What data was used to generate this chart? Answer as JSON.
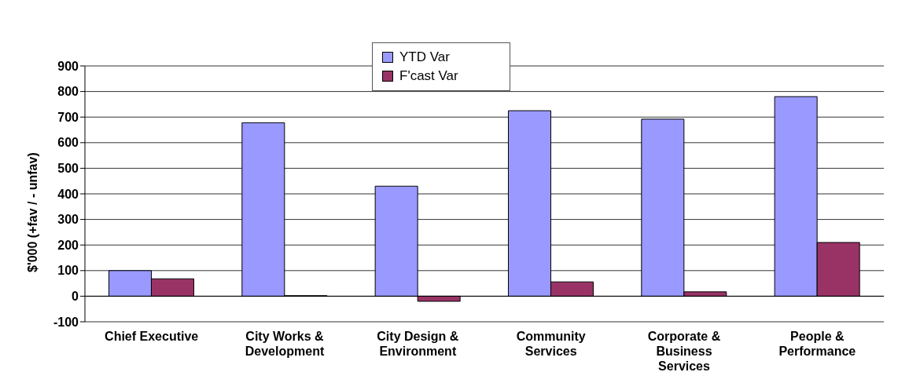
{
  "chart_data": {
    "type": "bar",
    "ylabel": "$'000 (+fav / - unfav)",
    "categories": [
      "Chief Executive",
      "City Works & Development",
      "City Design & Environment",
      "Community Services",
      "Corporate & Business Services",
      "People & Performance"
    ],
    "series": [
      {
        "name": "YTD Var",
        "color": "#9999ff",
        "values": [
          100,
          678,
          430,
          725,
          692,
          780
        ]
      },
      {
        "name": "F'cast Var",
        "color": "#993366",
        "values": [
          68,
          2,
          -20,
          56,
          17,
          210
        ]
      }
    ],
    "ylim": [
      -100,
      900
    ],
    "yticks": [
      -100,
      0,
      100,
      200,
      300,
      400,
      500,
      600,
      700,
      800,
      900
    ],
    "grid": "y",
    "legend": "top"
  }
}
